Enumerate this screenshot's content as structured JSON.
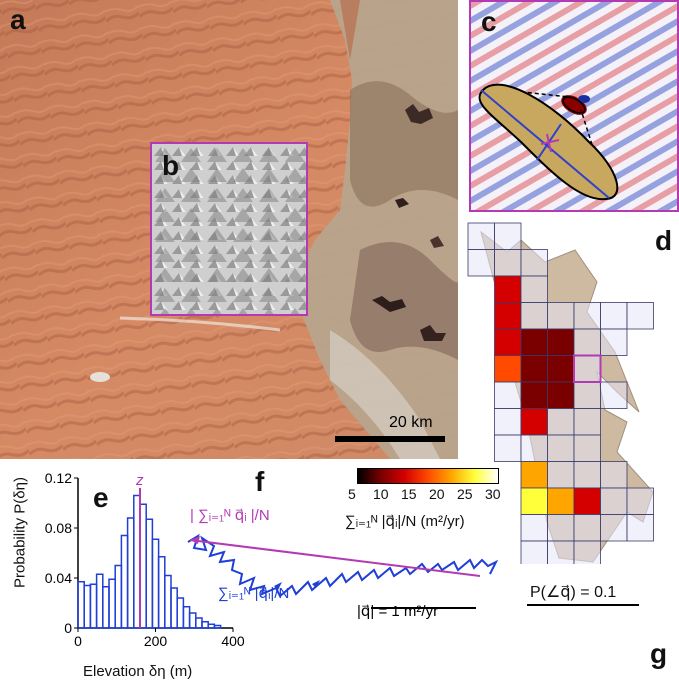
{
  "panels": {
    "a": "a",
    "b": "b",
    "c": "c",
    "d": "d",
    "e": "e",
    "f": "f",
    "g": "g"
  },
  "scale_bar": "20 km",
  "colorbar": {
    "ticks": [
      "5",
      "10",
      "15",
      "20",
      "25",
      "30"
    ],
    "label": "∑ᵢ₌₁ᴺ |q⃗ᵢ|/N (m²/yr)",
    "colors": [
      "#000000",
      "#7a0000",
      "#d40000",
      "#ff4a00",
      "#ffa500",
      "#ffff3a",
      "#ffffff"
    ]
  },
  "panel_d": {
    "highlight_color": "#b43ab3",
    "grid_line_color": "#3a3a6a",
    "empty_cell_color": "#e4e6f7",
    "shape_color": "#c2a88a"
  },
  "panel_f": {
    "top_label": "| ∑ᵢ₌₁ᴺ q⃗ᵢ |/N",
    "bottom_label": "∑ᵢ₌₁ᴺ |q⃗ᵢ|/N",
    "scale_label": "|q⃗| = 1 m²/yr",
    "top_color": "#b43ab3",
    "bottom_color": "#1f3fd6"
  },
  "panel_g": {
    "label": "P(∠q⃗) = 0.1"
  },
  "chart_data": {
    "type": "bar",
    "title": "",
    "xlabel": "Elevation δη (m)",
    "ylabel": "Probability P(δη)",
    "xlim": [
      0,
      400
    ],
    "ylim": [
      0,
      0.12
    ],
    "xticks": [
      "0",
      "200",
      "400"
    ],
    "yticks": [
      "0",
      "0.04",
      "0.08",
      "0.12"
    ],
    "marker_label": "z",
    "marker_x": 160,
    "bin_width": 16,
    "x": [
      8,
      24,
      40,
      56,
      72,
      88,
      104,
      120,
      136,
      152,
      168,
      184,
      200,
      216,
      232,
      248,
      264,
      280,
      296,
      312,
      328,
      344,
      360
    ],
    "values": [
      0.037,
      0.034,
      0.035,
      0.043,
      0.033,
      0.039,
      0.05,
      0.074,
      0.088,
      0.106,
      0.099,
      0.087,
      0.071,
      0.057,
      0.042,
      0.032,
      0.024,
      0.017,
      0.012,
      0.008,
      0.005,
      0.003,
      0.002
    ],
    "bar_color": "#1f3fd6",
    "marker_color": "#b43ab3"
  }
}
